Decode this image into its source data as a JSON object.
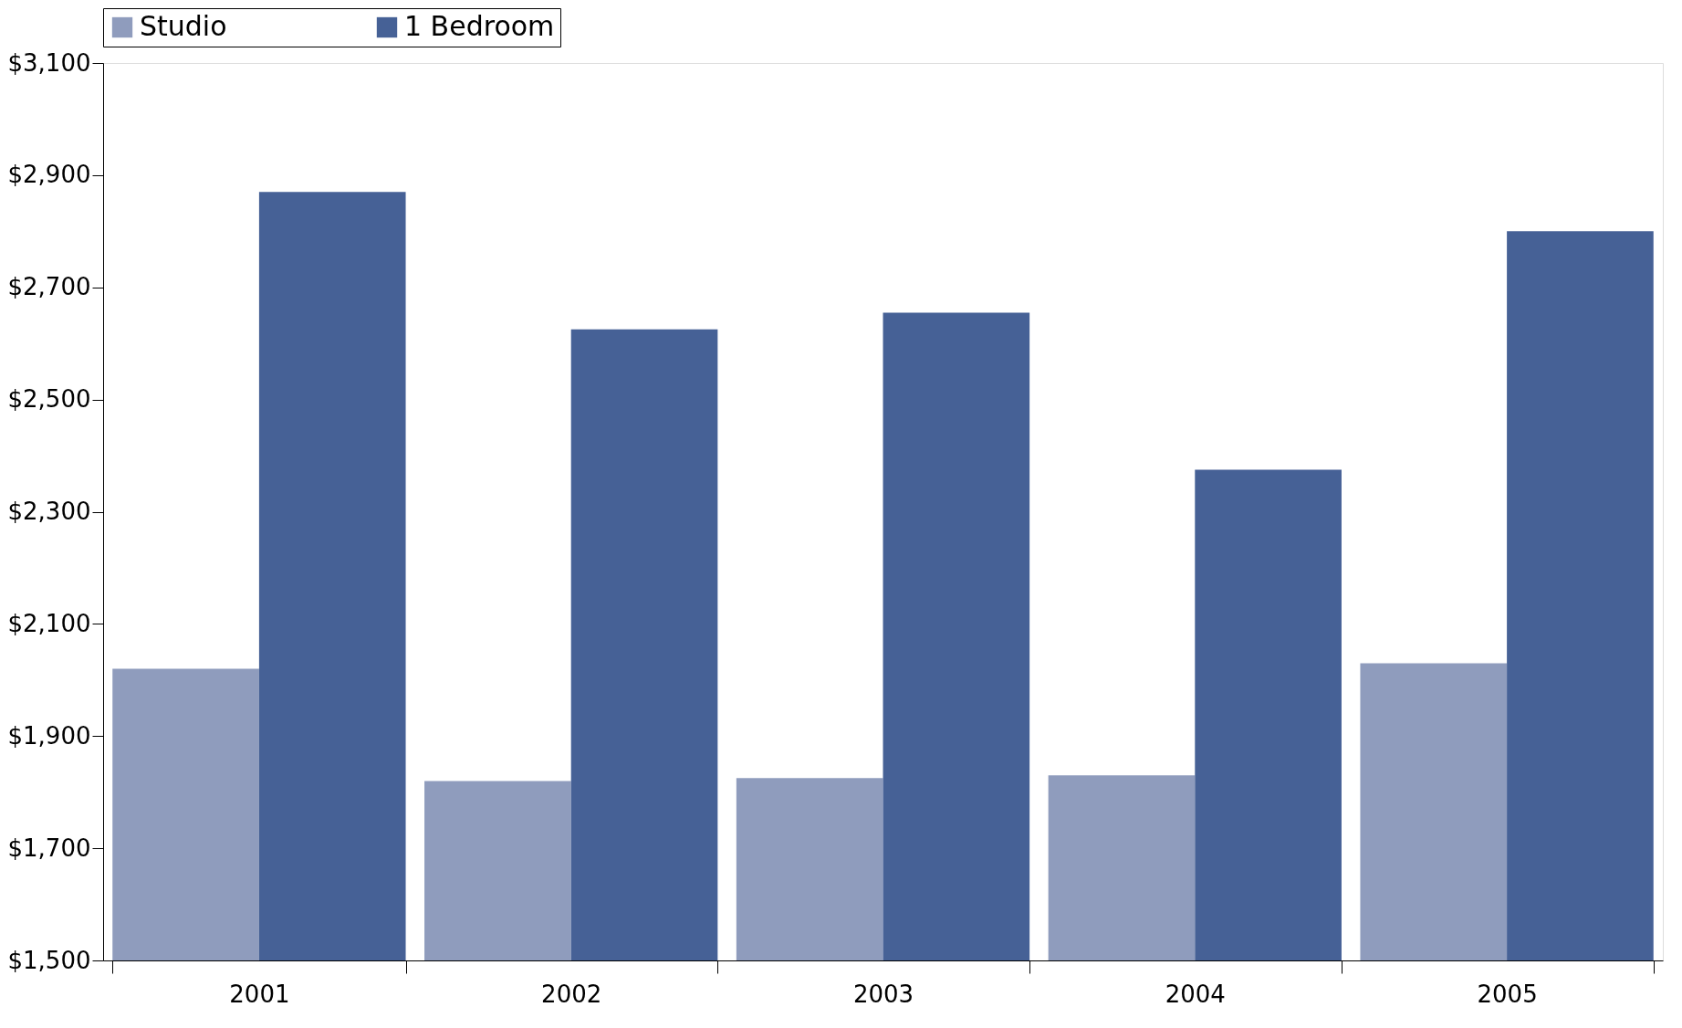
{
  "chart_data": {
    "type": "bar",
    "categories": [
      "2001",
      "2002",
      "2003",
      "2004",
      "2005"
    ],
    "series": [
      {
        "name": "Studio",
        "color": "#8f9cbd",
        "values": [
          2020,
          1820,
          1825,
          1830,
          2030
        ]
      },
      {
        "name": "1 Bedroom",
        "color": "#466196",
        "values": [
          2870,
          2625,
          2655,
          2375,
          2800
        ]
      }
    ],
    "ylim": [
      1500,
      3100
    ],
    "yticks": [
      {
        "value": 1500,
        "label": "$1,500"
      },
      {
        "value": 1700,
        "label": "$1,700"
      },
      {
        "value": 1900,
        "label": "$1,900"
      },
      {
        "value": 2100,
        "label": "$2,100"
      },
      {
        "value": 2300,
        "label": "$2,300"
      },
      {
        "value": 2500,
        "label": "$2,500"
      },
      {
        "value": 2700,
        "label": "$2,700"
      },
      {
        "value": 2900,
        "label": "$2,900"
      },
      {
        "value": 3100,
        "label": "$3,100"
      }
    ],
    "grid": false,
    "legend": "top"
  }
}
